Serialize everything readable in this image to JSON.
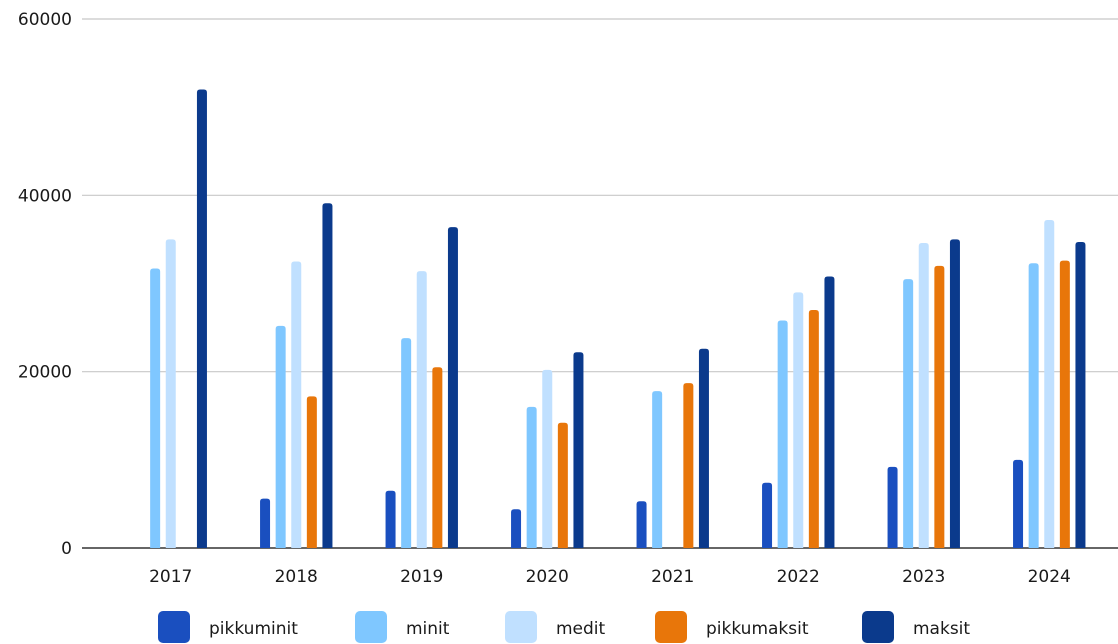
{
  "chart_data": {
    "type": "bar",
    "title": "",
    "xlabel": "",
    "ylabel": "",
    "categories": [
      "2017",
      "2018",
      "2019",
      "2020",
      "2021",
      "2022",
      "2023",
      "2024"
    ],
    "ylim": [
      0,
      60000
    ],
    "yticks": [
      0,
      20000,
      40000,
      60000
    ],
    "ytick_labels": [
      "0",
      "20000",
      "40000",
      "60000"
    ],
    "grid": true,
    "legend_position": "bottom",
    "series": [
      {
        "name": "pikkuminit",
        "color": "#1a4fbf",
        "values": [
          0,
          5600,
          6500,
          4400,
          5300,
          7400,
          9200,
          10000
        ]
      },
      {
        "name": "minit",
        "color": "#7fc7ff",
        "values": [
          31700,
          25200,
          23800,
          16000,
          17800,
          25800,
          30500,
          32300
        ]
      },
      {
        "name": "medit",
        "color": "#c0e0ff",
        "values": [
          35000,
          32500,
          31400,
          20200,
          0,
          29000,
          34600,
          37200
        ]
      },
      {
        "name": "pikkumaksit",
        "color": "#e8760a",
        "values": [
          0,
          17200,
          20500,
          14200,
          18700,
          27000,
          32000,
          32600
        ]
      },
      {
        "name": "maksit",
        "color": "#0b3a8c",
        "values": [
          52000,
          39100,
          36400,
          22200,
          22600,
          30800,
          35000,
          34700
        ]
      }
    ]
  }
}
